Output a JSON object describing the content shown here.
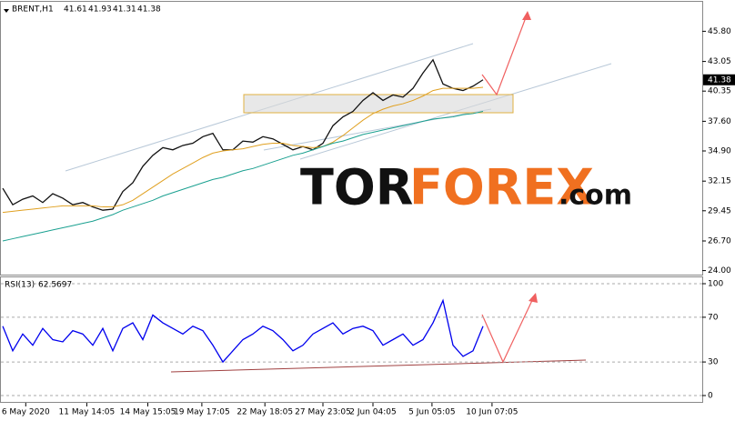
{
  "chart_data": [
    {
      "type": "line",
      "title": "BRENT,H1",
      "ohlc": [
        41.61,
        41.93,
        41.31,
        41.38
      ],
      "last_value": 41.38,
      "x": [
        0,
        1,
        2,
        3,
        4,
        5,
        6,
        7,
        8,
        9,
        10,
        11,
        12,
        13,
        14,
        15,
        16,
        17,
        18,
        19,
        20,
        21,
        22,
        23,
        24,
        25,
        26,
        27,
        28,
        29,
        30,
        31,
        32,
        33,
        34,
        35,
        36,
        37,
        38,
        39,
        40,
        41,
        42,
        43,
        44,
        45,
        46,
        47,
        48
      ],
      "xlim": [
        0,
        70
      ],
      "ylim": [
        23.8,
        48.4
      ],
      "yticks": [
        {
          "value": 45.8,
          "label": "45.80"
        },
        {
          "value": 43.05,
          "label": "43.05"
        },
        {
          "value": 40.35,
          "label": "40.35"
        },
        {
          "value": 37.6,
          "label": "37.60"
        },
        {
          "value": 34.9,
          "label": "34.90"
        },
        {
          "value": 32.15,
          "label": "32.15"
        },
        {
          "value": 29.45,
          "label": "29.45"
        },
        {
          "value": 26.7,
          "label": "26.70"
        },
        {
          "value": 24.0,
          "label": "24.00"
        }
      ],
      "series": [
        {
          "color": "#111111",
          "values": [
            31.5,
            30.0,
            30.5,
            30.8,
            30.2,
            31.0,
            30.6,
            30.0,
            30.2,
            29.8,
            29.5,
            29.6,
            31.2,
            32.0,
            33.5,
            34.5,
            35.2,
            35.0,
            35.4,
            35.6,
            36.2,
            36.5,
            35.0,
            35.0,
            35.8,
            35.7,
            36.2,
            36.0,
            35.5,
            35.0,
            35.3,
            35.0,
            35.6,
            37.2,
            38.0,
            38.5,
            39.5,
            40.2,
            39.5,
            40.0,
            39.8,
            40.6,
            42.0,
            43.2,
            41.0,
            40.6,
            40.4,
            40.8,
            41.38
          ]
        },
        {
          "color": "#e0a020",
          "values": [
            29.3,
            29.4,
            29.5,
            29.6,
            29.7,
            29.8,
            29.9,
            29.9,
            29.9,
            29.9,
            29.8,
            29.8,
            30.0,
            30.4,
            31.0,
            31.6,
            32.2,
            32.8,
            33.3,
            33.8,
            34.3,
            34.7,
            34.9,
            35.0,
            35.1,
            35.3,
            35.5,
            35.6,
            35.6,
            35.4,
            35.3,
            35.2,
            35.3,
            35.7,
            36.3,
            37.0,
            37.7,
            38.3,
            38.7,
            39.0,
            39.2,
            39.5,
            39.9,
            40.4,
            40.6,
            40.6,
            40.6,
            40.6,
            40.7
          ]
        },
        {
          "color": "#1aa090",
          "values": [
            26.7,
            26.9,
            27.1,
            27.3,
            27.5,
            27.7,
            27.9,
            28.1,
            28.3,
            28.5,
            28.8,
            29.1,
            29.5,
            29.8,
            30.1,
            30.4,
            30.8,
            31.1,
            31.4,
            31.7,
            32.0,
            32.3,
            32.5,
            32.8,
            33.1,
            33.3,
            33.6,
            33.9,
            34.2,
            34.5,
            34.7,
            35.0,
            35.3,
            35.6,
            35.8,
            36.1,
            36.4,
            36.6,
            36.8,
            37.0,
            37.2,
            37.4,
            37.6,
            37.8,
            37.9,
            38.0,
            38.2,
            38.3,
            38.5
          ]
        }
      ]
    },
    {
      "type": "line",
      "title": "RSI(13)",
      "last_value": 62.5697,
      "x": [
        0,
        1,
        2,
        3,
        4,
        5,
        6,
        7,
        8,
        9,
        10,
        11,
        12,
        13,
        14,
        15,
        16,
        17,
        18,
        19,
        20,
        21,
        22,
        23,
        24,
        25,
        26,
        27,
        28,
        29,
        30,
        31,
        32,
        33,
        34,
        35,
        36,
        37,
        38,
        39,
        40,
        41,
        42,
        43,
        44,
        45,
        46,
        47,
        48
      ],
      "xlim": [
        0,
        70
      ],
      "ylim": [
        -5.7,
        105.7
      ],
      "yticks": [
        100,
        70,
        30,
        0
      ],
      "grid": true,
      "xticks": [
        {
          "value": 2.3,
          "label": "6 May 2020"
        },
        {
          "value": 8.4,
          "label": "11 May 14:05"
        },
        {
          "value": 14.5,
          "label": "14 May 15:05"
        },
        {
          "value": 19.9,
          "label": "19 May 17:05"
        },
        {
          "value": 26.2,
          "label": "22 May 18:05"
        },
        {
          "value": 32,
          "label": "27 May 23:05"
        },
        {
          "value": 37,
          "label": "2 Jun 04:05"
        },
        {
          "value": 42.9,
          "label": "5 Jun 05:05"
        },
        {
          "value": 48.9,
          "label": "10 Jun 07:05"
        }
      ],
      "series": [
        {
          "color": "#0000ee",
          "values": [
            62,
            40,
            55,
            45,
            60,
            50,
            48,
            58,
            55,
            45,
            60,
            40,
            60,
            65,
            50,
            72,
            65,
            60,
            55,
            62,
            58,
            45,
            30,
            40,
            50,
            55,
            62,
            58,
            50,
            40,
            45,
            55,
            60,
            65,
            55,
            60,
            62,
            58,
            45,
            50,
            55,
            45,
            50,
            65,
            85,
            45,
            35,
            40,
            62
          ]
        }
      ]
    }
  ],
  "watermark": [
    "TOR",
    "FOREX",
    ".com"
  ]
}
